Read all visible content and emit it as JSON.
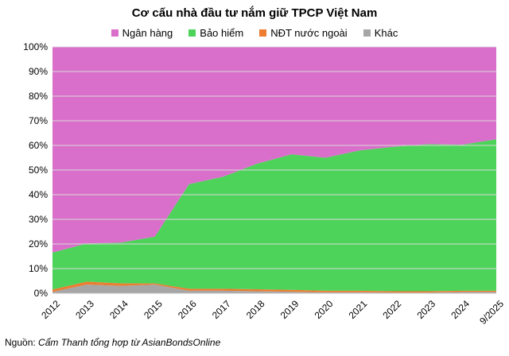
{
  "chart_data": {
    "type": "area",
    "stacked": true,
    "title": "Cơ cấu nhà đầu tư nắm giữ TPCP Việt Nam",
    "categories": [
      "2012",
      "2013",
      "2014",
      "2015",
      "2016",
      "2017",
      "2018",
      "2019",
      "2020",
      "2021",
      "2022",
      "2023",
      "2024",
      "9/2025"
    ],
    "ylim": [
      0,
      100
    ],
    "yticks": [
      "0%",
      "10%",
      "20%",
      "30%",
      "40%",
      "50%",
      "60%",
      "70%",
      "80%",
      "90%",
      "100%"
    ],
    "legend_position": "top",
    "grid": true,
    "series": [
      {
        "name": "Khác",
        "color": "#a6a6a6",
        "values": [
          0.5,
          3.5,
          3.0,
          3.5,
          1.0,
          1.0,
          0.8,
          0.6,
          0.4,
          0.4,
          0.3,
          0.3,
          0.5,
          0.5
        ]
      },
      {
        "name": "NĐT nước ngoài",
        "color": "#ed7d31",
        "values": [
          1.0,
          1.2,
          1.0,
          0.5,
          0.8,
          0.8,
          0.8,
          0.8,
          0.6,
          0.6,
          0.5,
          0.5,
          0.5,
          0.5
        ]
      },
      {
        "name": "Bảo hiểm",
        "color": "#4dd25a",
        "values": [
          15.0,
          15.5,
          16.5,
          19.0,
          42.5,
          45.5,
          51.0,
          55.0,
          54.0,
          57.0,
          58.7,
          59.7,
          59.3,
          61.5
        ]
      },
      {
        "name": "Ngân hàng",
        "color": "#d96fca",
        "values": [
          83.5,
          79.8,
          79.5,
          77.0,
          55.7,
          52.7,
          47.4,
          43.6,
          45.0,
          42.0,
          40.5,
          39.5,
          39.7,
          37.5
        ]
      }
    ]
  },
  "legend": [
    {
      "label": "Ngân hàng",
      "color": "#d96fca"
    },
    {
      "label": "Bảo hiểm",
      "color": "#4dd25a"
    },
    {
      "label": "NĐT nước ngoài",
      "color": "#ed7d31"
    },
    {
      "label": "Khác",
      "color": "#a6a6a6"
    }
  ],
  "source": {
    "prefix": "Nguồn: ",
    "text": "Cẩm Thanh tổng hợp từ AsianBondsOnline"
  }
}
